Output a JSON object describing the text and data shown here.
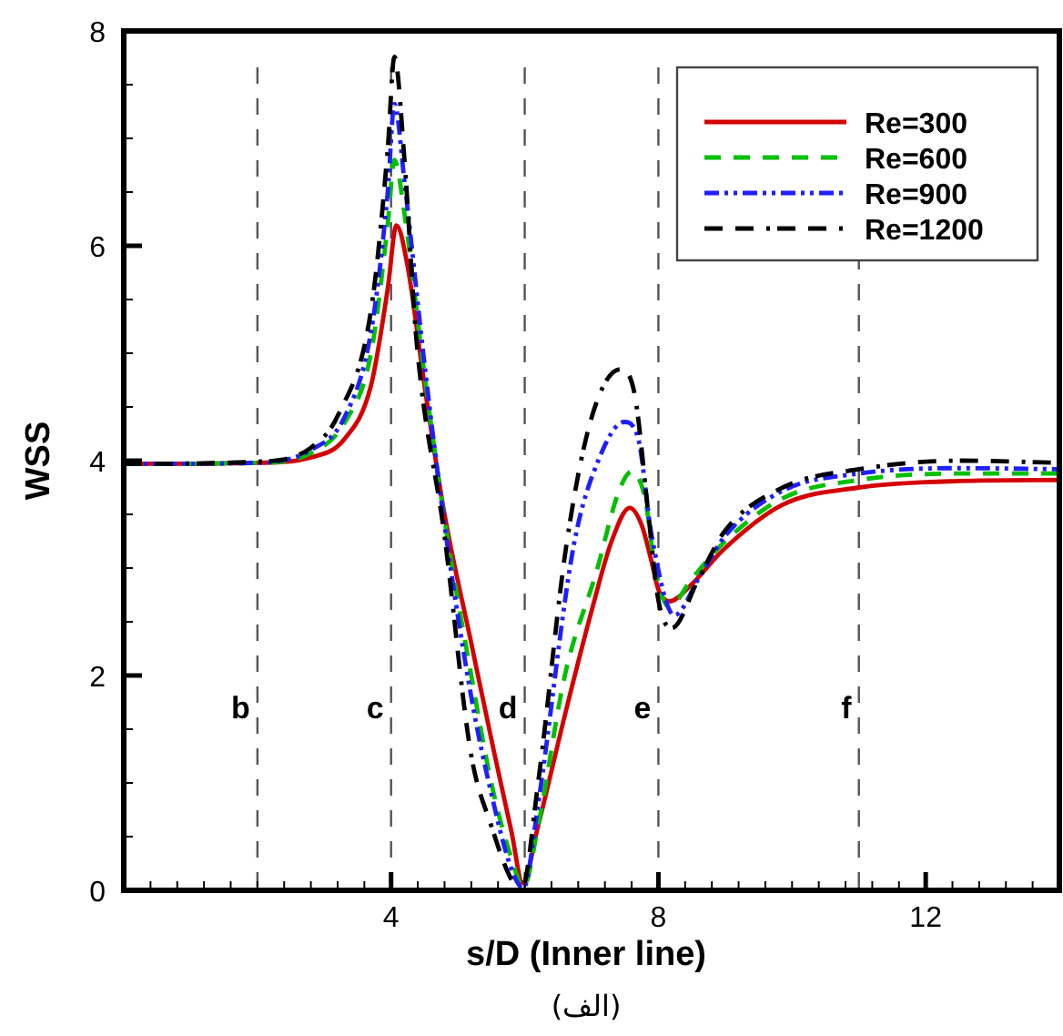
{
  "chart_data": {
    "type": "line",
    "xlabel": "s/D (Inner line)",
    "ylabel": "WSS",
    "xlim": [
      0,
      14
    ],
    "ylim": [
      0,
      8
    ],
    "xticks": [
      4,
      8,
      12
    ],
    "yticks": [
      0,
      2,
      4,
      6,
      8
    ],
    "grid": false,
    "legend": "top right",
    "marker": "none",
    "series": [
      {
        "name": "Re=300",
        "color": "#d40000",
        "line_style": "solid",
        "x": [
          0,
          2,
          2.8,
          3.3,
          3.7,
          3.95,
          4.08,
          4.25,
          4.5,
          4.8,
          5.2,
          5.54,
          5.8,
          5.97,
          6.2,
          6.62,
          7.0,
          7.3,
          7.57,
          7.75,
          7.89,
          8.0,
          8.16,
          8.5,
          8.97,
          9.86,
          11,
          12.5,
          14
        ],
        "values": [
          3.97,
          3.98,
          4.03,
          4.2,
          4.7,
          5.6,
          6.19,
          5.8,
          4.7,
          3.5,
          2.3,
          1.29,
          0.55,
          0.07,
          0.6,
          1.68,
          2.6,
          3.25,
          3.56,
          3.4,
          3.08,
          2.8,
          2.69,
          2.85,
          3.17,
          3.59,
          3.75,
          3.81,
          3.82
        ]
      },
      {
        "name": "Re=600",
        "color": "#00c000",
        "line_style": "dashed",
        "x": [
          0,
          2,
          2.8,
          3.3,
          3.7,
          3.95,
          4.05,
          4.2,
          4.5,
          4.8,
          5.2,
          5.5,
          5.8,
          5.98,
          6.2,
          6.6,
          7.08,
          7.4,
          7.6,
          7.8,
          7.95,
          8.16,
          8.5,
          9,
          9.86,
          11,
          12.5,
          14
        ],
        "values": [
          3.97,
          3.98,
          4.07,
          4.35,
          5.0,
          6.2,
          6.8,
          6.3,
          4.8,
          3.45,
          2.0,
          1.0,
          0.3,
          0.03,
          0.6,
          2.0,
          2.98,
          3.7,
          3.9,
          3.65,
          3.0,
          2.64,
          2.9,
          3.25,
          3.65,
          3.82,
          3.88,
          3.88
        ]
      },
      {
        "name": "Re=900",
        "color": "#1f1fff",
        "line_style": "dotted",
        "x": [
          0,
          2,
          2.8,
          3.3,
          3.7,
          3.95,
          4.05,
          4.2,
          4.5,
          4.8,
          5.2,
          5.5,
          5.8,
          5.98,
          6.2,
          6.73,
          7.1,
          7.49,
          7.7,
          7.9,
          8.24,
          8.6,
          9,
          9.86,
          11,
          12.5,
          14
        ],
        "values": [
          3.97,
          3.98,
          4.1,
          4.4,
          5.2,
          6.5,
          7.32,
          6.6,
          4.9,
          3.4,
          1.8,
          0.9,
          0.2,
          0.02,
          0.8,
          3.2,
          4.0,
          4.36,
          4.2,
          3.3,
          2.56,
          2.9,
          3.3,
          3.72,
          3.88,
          3.93,
          3.92
        ]
      },
      {
        "name": "Re=1200",
        "color": "#000000",
        "line_style": "dashed",
        "x": [
          0,
          2,
          2.8,
          3.22,
          3.7,
          3.95,
          4.05,
          4.2,
          4.38,
          4.8,
          5.19,
          5.5,
          5.8,
          5.95,
          6.2,
          6.62,
          7.0,
          7.43,
          7.65,
          7.85,
          8.0,
          8.2,
          8.6,
          9,
          9.86,
          11,
          12.5,
          14
        ],
        "values": [
          3.97,
          3.99,
          4.12,
          4.44,
          5.4,
          6.9,
          7.76,
          6.8,
          5.12,
          3.3,
          1.29,
          0.6,
          0.1,
          0.0,
          1.0,
          3.2,
          4.4,
          4.85,
          4.6,
          3.5,
          2.7,
          2.44,
          2.9,
          3.35,
          3.75,
          3.92,
          4.0,
          3.98
        ]
      }
    ],
    "ref_lines": [
      {
        "axis": "x",
        "value": 2,
        "label": "b",
        "color": "#555555",
        "line_style": "dashed"
      },
      {
        "axis": "x",
        "value": 4,
        "label": "c",
        "color": "#555555",
        "line_style": "dashed"
      },
      {
        "axis": "x",
        "value": 6,
        "label": "d",
        "color": "#555555",
        "line_style": "dashed"
      },
      {
        "axis": "x",
        "value": 8,
        "label": "e",
        "color": "#555555",
        "line_style": "dashed"
      },
      {
        "axis": "x",
        "value": 11,
        "label": "f",
        "color": "#555555",
        "line_style": "dashed"
      }
    ],
    "annotations": [
      "(الف)"
    ]
  }
}
